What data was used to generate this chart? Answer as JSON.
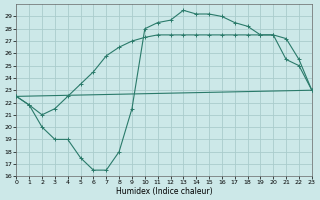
{
  "xlabel": "Humidex (Indice chaleur)",
  "bg_color": "#cce8e8",
  "grid_color": "#aacccc",
  "line_color": "#2a7a6a",
  "ylim": [
    16,
    30
  ],
  "xlim": [
    0,
    23
  ],
  "yticks": [
    16,
    17,
    18,
    19,
    20,
    21,
    22,
    23,
    24,
    25,
    26,
    27,
    28,
    29
  ],
  "xticks": [
    0,
    1,
    2,
    3,
    4,
    5,
    6,
    7,
    8,
    9,
    10,
    11,
    12,
    13,
    14,
    15,
    16,
    17,
    18,
    19,
    20,
    21,
    22,
    23
  ],
  "curve1_x": [
    0,
    1,
    2,
    3,
    4,
    5,
    6,
    7,
    8,
    9,
    10,
    11,
    12,
    13,
    14,
    15,
    16,
    17,
    18,
    19,
    20,
    21,
    22,
    23
  ],
  "curve1_y": [
    22.5,
    21.8,
    20.0,
    19.0,
    19.0,
    17.5,
    16.5,
    16.5,
    18.0,
    21.5,
    28.0,
    28.5,
    28.7,
    29.5,
    29.2,
    29.2,
    29.0,
    28.5,
    28.2,
    27.5,
    27.5,
    25.5,
    25.0,
    23.0
  ],
  "curve2_x": [
    0,
    1,
    2,
    3,
    4,
    5,
    6,
    7,
    8,
    9,
    10,
    11,
    12,
    13,
    14,
    15,
    16,
    17,
    18,
    19,
    20,
    21,
    22,
    23
  ],
  "curve2_y": [
    22.5,
    21.8,
    21.0,
    21.5,
    22.5,
    23.5,
    24.5,
    25.8,
    26.5,
    27.0,
    27.3,
    27.5,
    27.5,
    27.5,
    27.5,
    27.5,
    27.5,
    27.5,
    27.5,
    27.5,
    27.5,
    27.2,
    25.5,
    23.0
  ],
  "curve3_x": [
    0,
    23
  ],
  "curve3_y": [
    22.5,
    23.0
  ]
}
